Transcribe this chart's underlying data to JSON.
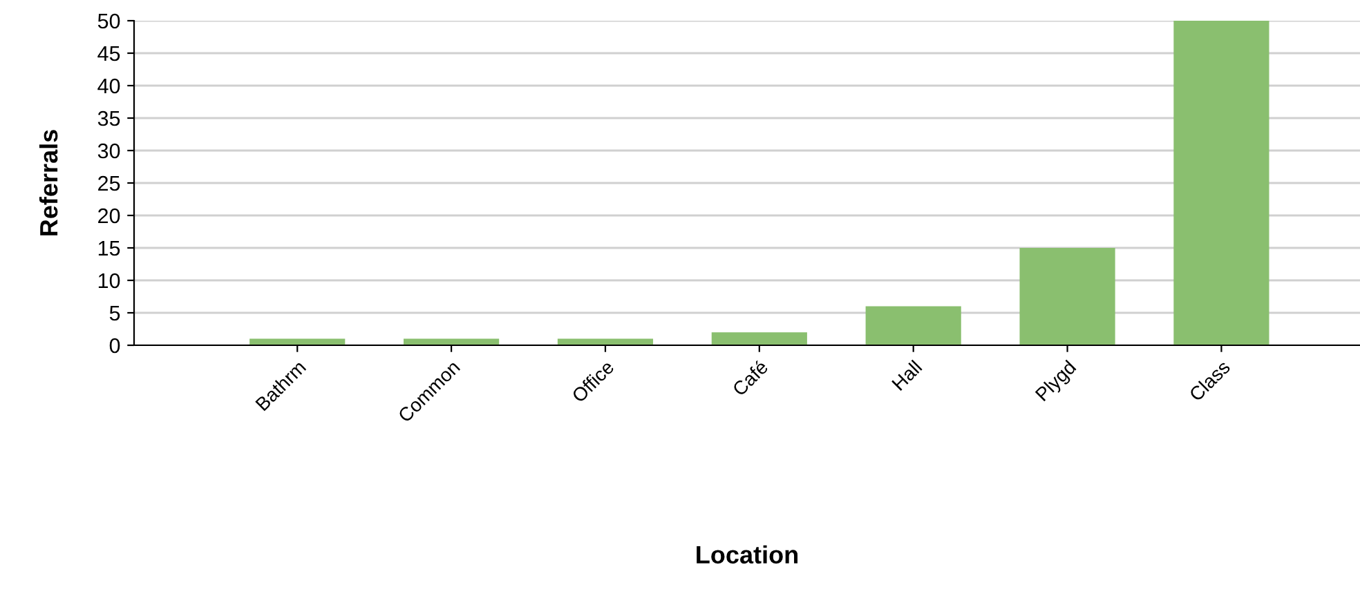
{
  "chart_data": {
    "type": "bar",
    "xlabel": "Location",
    "ylabel": "Referrals",
    "categories": [
      "Bathrm",
      "Common",
      "Office",
      "Café",
      "Hall",
      "Plygd",
      "Class"
    ],
    "values": [
      1,
      1,
      1,
      2,
      6,
      15,
      50
    ],
    "color": "#8abf6f",
    "ylim": [
      0,
      50
    ],
    "yticks": [
      0,
      5,
      10,
      15,
      20,
      25,
      30,
      35,
      40,
      45,
      50
    ],
    "grid": "y",
    "legend": false
  }
}
